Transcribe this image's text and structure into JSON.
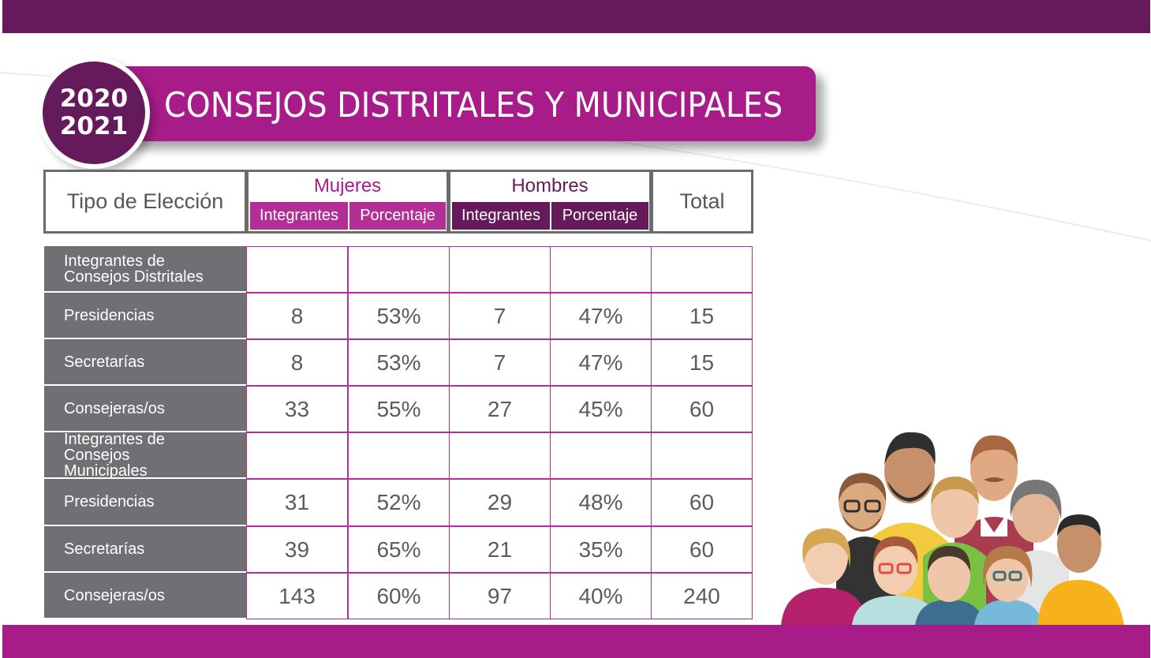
{
  "title": "CONSEJOS DISTRITALES Y MUNICIPALES",
  "year": {
    "line1": "2020",
    "line2": "2021"
  },
  "header": {
    "tipo": "Tipo de Elección",
    "mujeres": "Mujeres",
    "hombres": "Hombres",
    "total": "Total",
    "integrantes": "Integrantes",
    "porcentaje": "Porcentaje"
  },
  "rows": [
    {
      "label": "Integrantes de Consejos Distritales",
      "values": [
        "",
        "",
        "",
        "",
        ""
      ]
    },
    {
      "label": "Presidencias",
      "values": [
        "8",
        "53%",
        "7",
        "47%",
        "15"
      ]
    },
    {
      "label": "Secretarías",
      "values": [
        "8",
        "53%",
        "7",
        "47%",
        "15"
      ]
    },
    {
      "label": "Consejeras/os",
      "values": [
        "33",
        "55%",
        "27",
        "45%",
        "60"
      ]
    },
    {
      "label": "Integrantes de Consejos Municipales",
      "values": [
        "",
        "",
        "",
        "",
        ""
      ]
    },
    {
      "label": "Presidencias",
      "values": [
        "31",
        "52%",
        "29",
        "48%",
        "60"
      ]
    },
    {
      "label": "Secretarías",
      "values": [
        "39",
        "65%",
        "21",
        "35%",
        "60"
      ]
    },
    {
      "label": "Consejeras/os",
      "values": [
        "143",
        "60%",
        "97",
        "40%",
        "240"
      ]
    }
  ],
  "colors": {
    "dark_purple": "#651a5c",
    "magenta": "#a81c8a",
    "row_gray": "#707074"
  },
  "illustration_icon": "group-of-people-illustration"
}
